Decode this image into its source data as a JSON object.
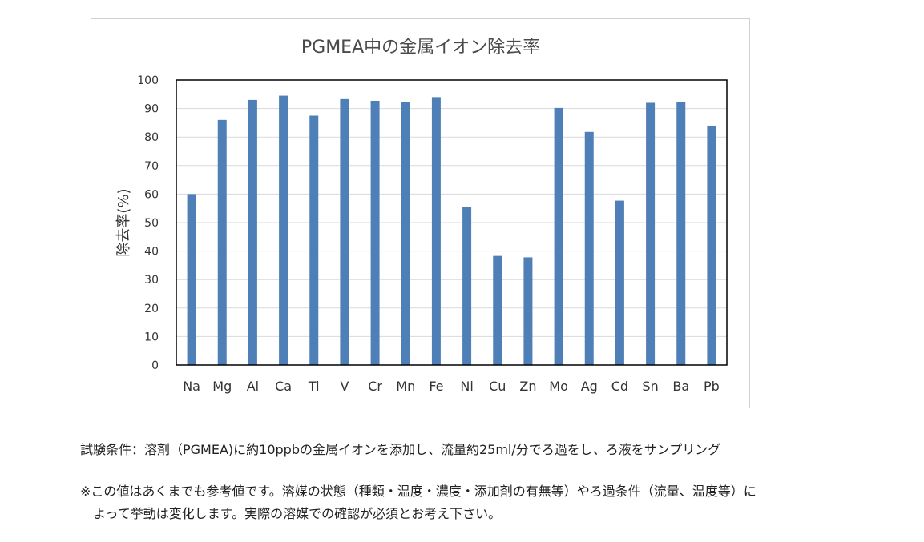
{
  "chart_data": {
    "type": "bar",
    "title": "PGMEA中の金属イオン除去率",
    "ylabel": "除去率(%)",
    "xlabel": "",
    "ylim": [
      0,
      100
    ],
    "yticks": [
      0,
      10,
      20,
      30,
      40,
      50,
      60,
      70,
      80,
      90,
      100
    ],
    "grid": true,
    "legend": "none",
    "bar_color": "#4f7fb7",
    "categories": [
      "Na",
      "Mg",
      "Al",
      "Ca",
      "Ti",
      "V",
      "Cr",
      "Mn",
      "Fe",
      "Ni",
      "Cu",
      "Zn",
      "Mo",
      "Ag",
      "Cd",
      "Sn",
      "Ba",
      "Pb"
    ],
    "values": [
      60,
      86,
      93,
      94.5,
      87.5,
      93.3,
      92.7,
      92.2,
      94,
      55.5,
      38.3,
      37.8,
      90.2,
      81.8,
      57.7,
      92,
      92.2,
      84
    ]
  },
  "notes": {
    "conditions": "試験条件：溶剤（PGMEA)に約10ppbの金属イオンを添加し、流量約25ml/分でろ過をし、ろ液をサンプリング",
    "disclaimer_line1": "※この値はあくまでも参考値です。溶媒の状態（種類・温度・濃度・添加剤の有無等）やろ過条件（流量、温度等）に",
    "disclaimer_line2": "よって挙動は変化します。実際の溶媒での確認が必須とお考え下さい。"
  }
}
